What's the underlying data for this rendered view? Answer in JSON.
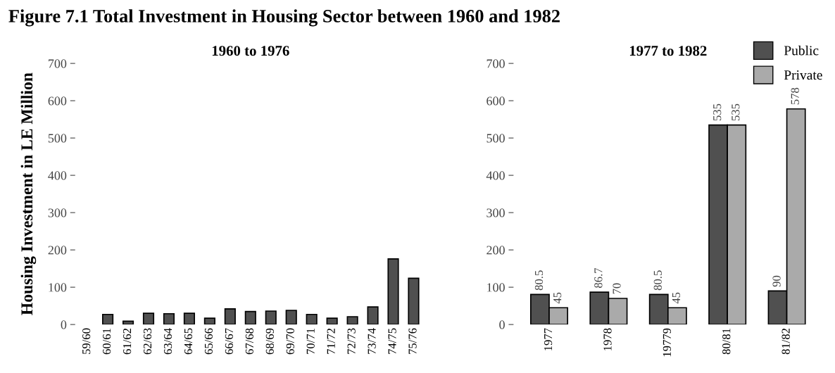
{
  "chart_data": [
    {
      "type": "bar",
      "title": "1960 to 1976",
      "ylabel": "Housing Investment in LE Million",
      "annotations": [
        "Figure 7.1 Total Investment in Housing Sector between 1960 and 1982"
      ],
      "categories": [
        "59/60",
        "60/61",
        "61/62",
        "62/63",
        "63/64",
        "64/65",
        "65/66",
        "66/67",
        "67/68",
        "68/69",
        "69/70",
        "70/71",
        "71/72",
        "72/73",
        "73/74",
        "74/75",
        "75/76"
      ],
      "series": [
        {
          "color": "#505050",
          "values": [
            null,
            27,
            9,
            30,
            29,
            30,
            17,
            42,
            35,
            36,
            38,
            27,
            17,
            21,
            47,
            176,
            124
          ]
        }
      ],
      "ylim": [
        0,
        700
      ],
      "yticks": [
        0,
        100,
        200,
        300,
        400,
        500,
        600,
        700
      ],
      "grid": false,
      "legend": false
    },
    {
      "type": "bar",
      "title": "1977 to 1982",
      "categories": [
        "1977",
        "1978",
        "19779",
        "80/81",
        "81/82"
      ],
      "series": [
        {
          "name": "Public",
          "color": "#505050",
          "values": [
            80.5,
            86.7,
            80.5,
            535,
            90
          ]
        },
        {
          "name": "Private",
          "color": "#aaaaaa",
          "values": [
            45,
            70,
            45,
            535,
            578
          ]
        }
      ],
      "data_labels": true,
      "ylim": [
        0,
        700
      ],
      "yticks": [
        0,
        100,
        200,
        300,
        400,
        500,
        600,
        700
      ],
      "grid": false,
      "legend": "top right"
    }
  ]
}
